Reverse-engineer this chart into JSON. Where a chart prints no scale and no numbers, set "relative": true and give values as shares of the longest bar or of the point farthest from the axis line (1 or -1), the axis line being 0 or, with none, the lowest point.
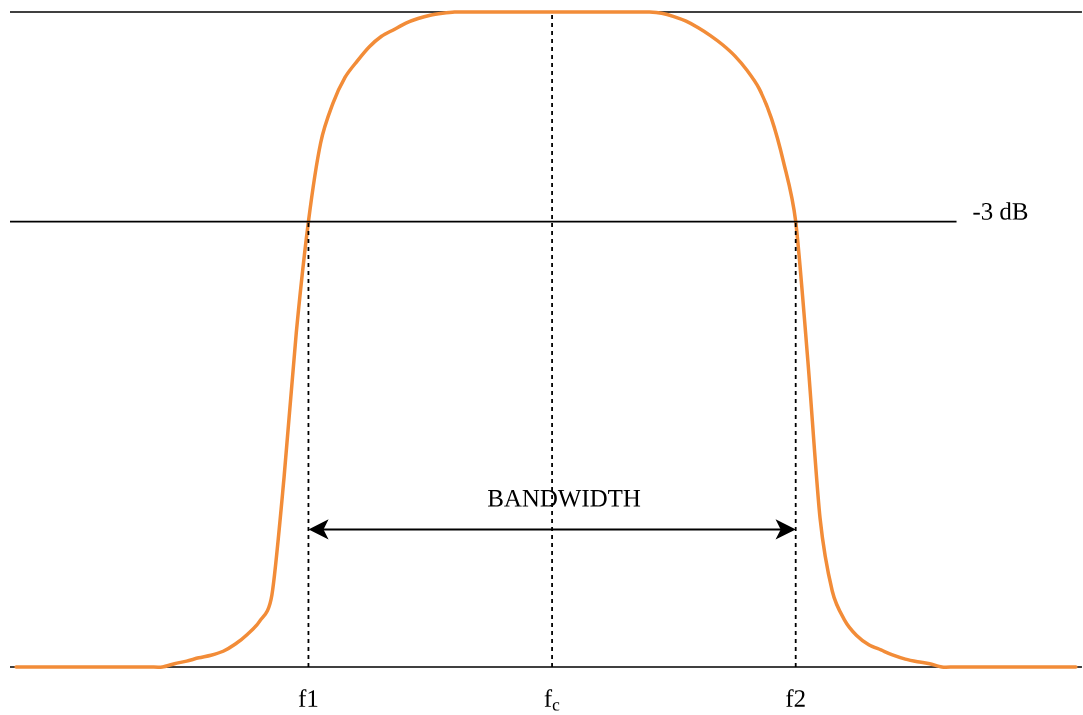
{
  "chart_data": {
    "type": "line",
    "relative": true,
    "categories": [
      null,
      null,
      null,
      null,
      null,
      null,
      null,
      null,
      null,
      null,
      null,
      null,
      null,
      null,
      null,
      null,
      null,
      null,
      null,
      null,
      null,
      null,
      null,
      null,
      "f1",
      null,
      null,
      null,
      null,
      null,
      null,
      null,
      null,
      null,
      null,
      null,
      null,
      null,
      null,
      null,
      null,
      null,
      null,
      null,
      "f$_{c}$",
      null,
      null,
      null,
      null,
      null,
      null,
      null,
      null,
      null,
      null,
      null,
      null,
      null,
      null,
      null,
      null,
      null,
      null,
      null,
      "f2",
      null,
      null,
      null,
      null,
      null,
      null,
      null,
      null,
      null,
      null,
      null,
      null,
      null,
      null,
      null,
      null,
      null,
      null,
      null,
      null,
      null,
      null,
      null
    ],
    "values": [
      0,
      0,
      0,
      0,
      0,
      0,
      0,
      0,
      0,
      0,
      0,
      0,
      0,
      0.005,
      0.009,
      0.014,
      0.018,
      0.024,
      0.035,
      0.05,
      0.07,
      0.11,
      0.29,
      0.51,
      0.68,
      0.8,
      0.86,
      0.9,
      0.925,
      0.947,
      0.963,
      0.973,
      0.983,
      0.99,
      0.995,
      0.998,
      1,
      1,
      1,
      1,
      1,
      1,
      1,
      1,
      1,
      1,
      1,
      1,
      1,
      1,
      1,
      1,
      1,
      0.998,
      0.993,
      0.986,
      0.976,
      0.964,
      0.95,
      0.933,
      0.911,
      0.883,
      0.838,
      0.771,
      0.68,
      0.467,
      0.227,
      0.116,
      0.072,
      0.048,
      0.034,
      0.026,
      0.018,
      0.012,
      0.008,
      0.005,
      0,
      0,
      0,
      0,
      0,
      0,
      0,
      0,
      0,
      0,
      0,
      0
    ],
    "color": "#f28c38",
    "ref_lines": [
      {
        "axis": "y",
        "value": 0.68,
        "label": "-3 dB"
      },
      {
        "axis": "x",
        "value": "f1",
        "line_style": "dotted"
      },
      {
        "axis": "x",
        "value": "f$_{c}$",
        "line_style": "dotted"
      },
      {
        "axis": "x",
        "value": "f2",
        "line_style": "dotted"
      }
    ],
    "annotations": [
      "BANDWIDTH"
    ]
  }
}
